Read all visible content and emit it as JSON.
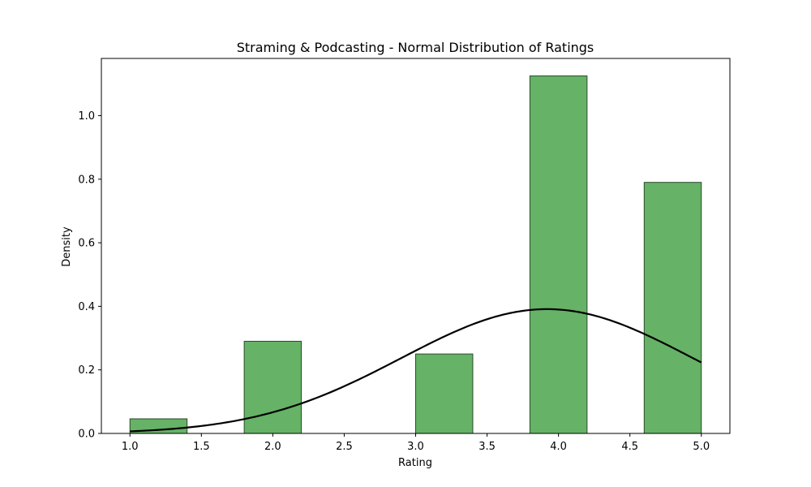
{
  "chart_data": {
    "type": "bar",
    "title": "Straming & Podcasting - Normal Distribution of Ratings",
    "xlabel": "Rating",
    "ylabel": "Density",
    "xlim": [
      0.8,
      5.2
    ],
    "ylim": [
      0,
      1.18
    ],
    "xticks": [
      1.0,
      1.5,
      2.0,
      2.5,
      3.0,
      3.5,
      4.0,
      4.5,
      5.0
    ],
    "xtick_labels": [
      "1.0",
      "1.5",
      "2.0",
      "2.5",
      "3.0",
      "3.5",
      "4.0",
      "4.5",
      "5.0"
    ],
    "yticks": [
      0.0,
      0.2,
      0.4,
      0.6,
      0.8,
      1.0
    ],
    "ytick_labels": [
      "0.0",
      "0.2",
      "0.4",
      "0.6",
      "0.8",
      "1.0"
    ],
    "histogram": {
      "bins": [
        {
          "x0": 1.0,
          "x1": 1.4,
          "density": 0.046
        },
        {
          "x0": 1.8,
          "x1": 2.2,
          "density": 0.29
        },
        {
          "x0": 3.0,
          "x1": 3.4,
          "density": 0.25
        },
        {
          "x0": 3.8,
          "x1": 4.2,
          "density": 1.125
        },
        {
          "x0": 4.6,
          "x1": 5.0,
          "density": 0.79
        }
      ],
      "color": "#66b266",
      "edgecolor": "#2b4a2b"
    },
    "normal_curve": {
      "mean": 3.92,
      "std": 1.02,
      "x_range": [
        1.0,
        5.0
      ],
      "color": "#000000"
    },
    "grid": false
  }
}
